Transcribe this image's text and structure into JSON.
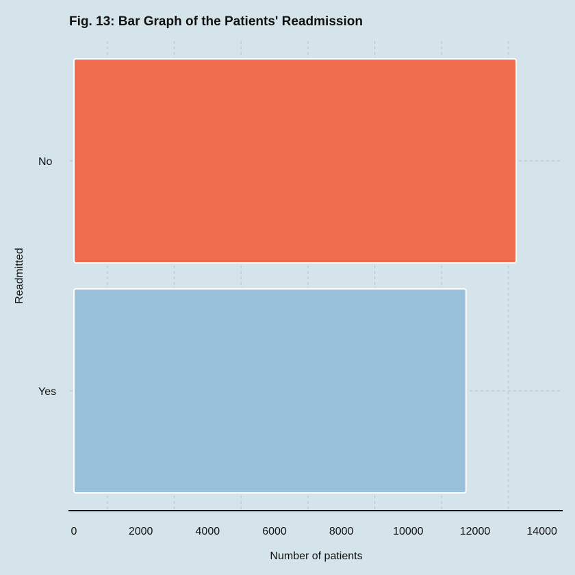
{
  "chart_data": {
    "type": "bar",
    "orientation": "horizontal",
    "title": "Fig. 13: Bar Graph of the Patients' Readmission",
    "xlabel": "Number of patients",
    "ylabel": "Readmitted",
    "categories": [
      "No",
      "Yes"
    ],
    "values": [
      13230,
      11730
    ],
    "colors": [
      "#ef6c4e",
      "#99c0d9"
    ],
    "xlim": [
      0,
      14800
    ],
    "xticks": [
      0,
      2000,
      4000,
      6000,
      8000,
      10000,
      12000,
      14000
    ],
    "xtick_labels": [
      "0",
      "2000",
      "4000",
      "6000",
      "8000",
      "10000",
      "12000",
      "14000"
    ],
    "minor_grid": [
      1000,
      3000,
      5000,
      7000,
      9000,
      11000,
      13000
    ],
    "grid": true,
    "legend": "none",
    "background": "#d5e4eb"
  }
}
